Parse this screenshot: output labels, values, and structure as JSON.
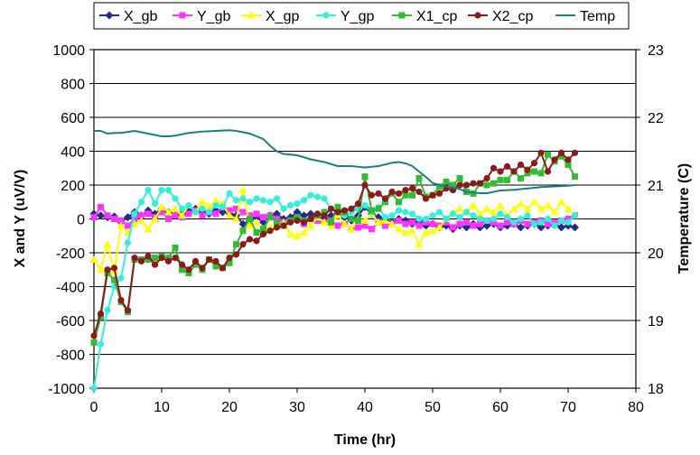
{
  "chart_data": {
    "type": "line",
    "xlabel": "Time (hr)",
    "ylabel": "X and Y (uV/V)",
    "y2label": "Temperature (C)",
    "xlim": [
      0,
      80
    ],
    "ylim": [
      -1000,
      1000
    ],
    "y2lim": [
      18,
      23
    ],
    "xticks": [
      "0",
      "10",
      "20",
      "30",
      "40",
      "50",
      "60",
      "70",
      "80"
    ],
    "yticks": [
      "1000",
      "800",
      "600",
      "400",
      "200",
      "0",
      "-200",
      "-400",
      "-600",
      "-800",
      "-1000"
    ],
    "y2ticks": [
      "23",
      "22",
      "21",
      "20",
      "19",
      "18"
    ],
    "grid": true,
    "legend_position": "top",
    "series": [
      {
        "name": "X_gb",
        "axis": "left",
        "color": "#1f2d8f",
        "marker": "diamond",
        "x": [
          0,
          1,
          2,
          3,
          4,
          5,
          6,
          7,
          8,
          9,
          10,
          11,
          12,
          13,
          14,
          15,
          16,
          17,
          18,
          19,
          20,
          21,
          22,
          23,
          24,
          25,
          26,
          27,
          28,
          29,
          30,
          31,
          32,
          33,
          34,
          35,
          36,
          37,
          38,
          39,
          40,
          41,
          42,
          43,
          44,
          45,
          46,
          47,
          48,
          49,
          50,
          51,
          52,
          53,
          54,
          55,
          56,
          57,
          58,
          59,
          60,
          61,
          62,
          63,
          64,
          65,
          66,
          67,
          68,
          69,
          70,
          71
        ],
        "y": [
          30,
          20,
          10,
          15,
          -20,
          10,
          40,
          20,
          50,
          30,
          60,
          40,
          20,
          30,
          50,
          60,
          40,
          30,
          50,
          40,
          35,
          20,
          -30,
          -10,
          10,
          -20,
          20,
          30,
          0,
          10,
          40,
          20,
          30,
          10,
          0,
          20,
          40,
          10,
          -10,
          20,
          70,
          30,
          10,
          0,
          -20,
          0,
          -10,
          -30,
          -10,
          -40,
          -30,
          -50,
          -40,
          -60,
          -40,
          -50,
          -30,
          -50,
          -40,
          -30,
          -50,
          -40,
          -30,
          -50,
          -40,
          -30,
          -50,
          -40,
          -30,
          -50,
          -40,
          -50
        ]
      },
      {
        "name": "Y_gb",
        "axis": "left",
        "color": "#ff33ff",
        "marker": "square",
        "x": [
          0,
          1,
          2,
          3,
          4,
          5,
          6,
          7,
          8,
          9,
          10,
          11,
          12,
          13,
          14,
          15,
          16,
          17,
          18,
          19,
          20,
          21,
          22,
          23,
          24,
          25,
          26,
          27,
          28,
          29,
          30,
          31,
          32,
          33,
          34,
          35,
          36,
          37,
          38,
          39,
          40,
          41,
          42,
          43,
          44,
          45,
          46,
          47,
          48,
          49,
          50,
          51,
          52,
          53,
          54,
          55,
          56,
          57,
          58,
          59,
          60,
          61,
          62,
          63,
          64,
          65,
          66,
          67,
          68,
          69,
          70,
          71
        ],
        "y": [
          10,
          70,
          20,
          0,
          -10,
          -40,
          0,
          20,
          30,
          10,
          40,
          0,
          20,
          10,
          30,
          50,
          20,
          40,
          30,
          70,
          50,
          60,
          40,
          20,
          30,
          10,
          20,
          0,
          -20,
          -10,
          10,
          -30,
          0,
          -10,
          -20,
          -10,
          -40,
          -30,
          -60,
          -50,
          -40,
          -60,
          -20,
          -40,
          -30,
          -10,
          -30,
          -20,
          -40,
          -20,
          -30,
          -40,
          -20,
          -50,
          -30,
          -20,
          -40,
          -30,
          -10,
          -20,
          -40,
          -20,
          -30,
          -10,
          -30,
          -20,
          -10,
          -30,
          -20,
          -10,
          0,
          20
        ]
      },
      {
        "name": "X_gp",
        "axis": "left",
        "color": "#ffff00",
        "marker": "triangle",
        "x": [
          0,
          1,
          2,
          3,
          4,
          5,
          6,
          7,
          8,
          9,
          10,
          11,
          12,
          13,
          14,
          15,
          16,
          17,
          18,
          19,
          20,
          21,
          22,
          23,
          24,
          25,
          26,
          27,
          28,
          29,
          30,
          31,
          32,
          33,
          34,
          35,
          36,
          37,
          38,
          39,
          40,
          41,
          42,
          43,
          44,
          45,
          46,
          47,
          48,
          49,
          50,
          51,
          52,
          53,
          54,
          55,
          56,
          57,
          58,
          59,
          60,
          61,
          62,
          63,
          64,
          65,
          66,
          67,
          68,
          69,
          70,
          71
        ],
        "y": [
          -240,
          -300,
          -150,
          -310,
          -40,
          -80,
          -30,
          -10,
          -60,
          0,
          70,
          40,
          60,
          20,
          80,
          40,
          100,
          70,
          110,
          90,
          20,
          0,
          170,
          -40,
          -20,
          -60,
          -50,
          -30,
          -20,
          -90,
          -100,
          -80,
          -40,
          10,
          -20,
          -40,
          20,
          -30,
          -60,
          0,
          -10,
          30,
          -20,
          -10,
          -30,
          -60,
          -80,
          -70,
          -150,
          -80,
          -70,
          -50,
          0,
          40,
          60,
          40,
          80,
          30,
          60,
          40,
          80,
          20,
          60,
          90,
          60,
          100,
          60,
          80,
          40,
          100,
          60,
          20
        ]
      },
      {
        "name": "Y_gp",
        "axis": "left",
        "color": "#33eedd",
        "marker": "circle",
        "x": [
          0,
          1,
          2,
          3,
          4,
          5,
          6,
          7,
          8,
          9,
          10,
          11,
          12,
          13,
          14,
          15,
          16,
          17,
          18,
          19,
          20,
          21,
          22,
          23,
          24,
          25,
          26,
          27,
          28,
          29,
          30,
          31,
          32,
          33,
          34,
          35,
          36,
          37,
          38,
          39,
          40,
          41,
          42,
          43,
          44,
          45,
          46,
          47,
          48,
          49,
          50,
          51,
          52,
          53,
          54,
          55,
          56,
          57,
          58,
          59,
          60,
          61,
          62,
          63,
          64,
          65,
          66,
          67,
          68,
          69,
          70,
          71
        ],
        "y": [
          -1000,
          -740,
          -540,
          -400,
          -350,
          -140,
          30,
          100,
          170,
          90,
          170,
          170,
          120,
          60,
          80,
          40,
          60,
          40,
          80,
          70,
          150,
          110,
          120,
          100,
          120,
          110,
          100,
          120,
          60,
          80,
          90,
          110,
          140,
          130,
          120,
          60,
          40,
          20,
          40,
          60,
          80,
          40,
          70,
          10,
          20,
          50,
          40,
          30,
          0,
          0,
          20,
          40,
          0,
          30,
          10,
          40,
          20,
          0,
          -10,
          0,
          30,
          10,
          -20,
          0,
          20,
          -30,
          -20,
          0,
          -40,
          -10,
          -20,
          20
        ]
      },
      {
        "name": "X1_cp",
        "axis": "left",
        "color": "#33bb33",
        "marker": "square",
        "x": [
          0,
          1,
          2,
          3,
          4,
          5,
          6,
          7,
          8,
          9,
          10,
          11,
          12,
          13,
          14,
          15,
          16,
          17,
          18,
          19,
          20,
          21,
          22,
          23,
          24,
          25,
          26,
          27,
          28,
          29,
          30,
          31,
          32,
          33,
          34,
          35,
          36,
          37,
          38,
          39,
          40,
          41,
          42,
          43,
          44,
          45,
          46,
          47,
          48,
          49,
          50,
          51,
          52,
          53,
          54,
          55,
          56,
          57,
          58,
          59,
          60,
          61,
          62,
          63,
          64,
          65,
          66,
          67,
          68,
          69,
          70,
          71
        ],
        "y": [
          -730,
          -580,
          -320,
          -360,
          -490,
          -550,
          -240,
          -240,
          -240,
          -230,
          -220,
          -230,
          -170,
          -300,
          -320,
          -270,
          -300,
          -240,
          -280,
          -290,
          -260,
          -150,
          -70,
          0,
          -80,
          -60,
          10,
          -20,
          -40,
          -10,
          10,
          -10,
          0,
          20,
          40,
          -20,
          70,
          40,
          0,
          -10,
          250,
          50,
          60,
          100,
          150,
          100,
          140,
          140,
          240,
          130,
          140,
          190,
          220,
          200,
          240,
          160,
          150,
          210,
          200,
          210,
          230,
          230,
          280,
          240,
          270,
          280,
          270,
          380,
          340,
          370,
          320,
          250
        ]
      },
      {
        "name": "X2_cp",
        "axis": "left",
        "color": "#8b1a1a",
        "marker": "circle",
        "x": [
          0,
          1,
          2,
          3,
          4,
          5,
          6,
          7,
          8,
          9,
          10,
          11,
          12,
          13,
          14,
          15,
          16,
          17,
          18,
          19,
          20,
          21,
          22,
          23,
          24,
          25,
          26,
          27,
          28,
          29,
          30,
          31,
          32,
          33,
          34,
          35,
          36,
          37,
          38,
          39,
          40,
          41,
          42,
          43,
          44,
          45,
          46,
          47,
          48,
          49,
          50,
          51,
          52,
          53,
          54,
          55,
          56,
          57,
          58,
          59,
          60,
          61,
          62,
          63,
          64,
          65,
          66,
          67,
          68,
          69,
          70,
          71
        ],
        "y": [
          -690,
          -560,
          -300,
          -290,
          -480,
          -540,
          -230,
          -250,
          -220,
          -270,
          -230,
          -250,
          -230,
          -270,
          -300,
          -250,
          -290,
          -240,
          -250,
          -290,
          -230,
          -210,
          -150,
          -120,
          -130,
          -90,
          -70,
          -50,
          -40,
          -20,
          -10,
          -20,
          0,
          30,
          20,
          60,
          40,
          50,
          60,
          90,
          200,
          140,
          150,
          120,
          160,
          150,
          170,
          180,
          160,
          120,
          140,
          150,
          180,
          170,
          200,
          200,
          210,
          210,
          240,
          300,
          280,
          310,
          280,
          320,
          290,
          330,
          390,
          280,
          350,
          390,
          350,
          390
        ]
      },
      {
        "name": "Temp",
        "axis": "right",
        "color": "#1a7f80",
        "marker": "none",
        "x": [
          0,
          1,
          2,
          3,
          4,
          6,
          8,
          10,
          11,
          12,
          14,
          16,
          18,
          20,
          21,
          22,
          23,
          24,
          25,
          26,
          27,
          28,
          30,
          32,
          34,
          36,
          38,
          40,
          42,
          44,
          45,
          46,
          47,
          48,
          49,
          50,
          51,
          52,
          53,
          54,
          55,
          56,
          57,
          58,
          59,
          60,
          62,
          64,
          66,
          68,
          70,
          71
        ],
        "y": [
          21.8,
          21.8,
          21.76,
          21.77,
          21.77,
          21.8,
          21.76,
          21.72,
          21.72,
          21.73,
          21.77,
          21.79,
          21.8,
          21.81,
          21.8,
          21.78,
          21.76,
          21.72,
          21.68,
          21.58,
          21.5,
          21.46,
          21.44,
          21.38,
          21.34,
          21.28,
          21.28,
          21.26,
          21.28,
          21.33,
          21.34,
          21.32,
          21.28,
          21.2,
          21.12,
          21.03,
          21.0,
          20.98,
          20.96,
          20.94,
          20.9,
          20.89,
          20.88,
          20.88,
          20.9,
          20.92,
          20.93,
          20.95,
          20.97,
          20.98,
          20.99,
          21.0
        ]
      }
    ]
  }
}
